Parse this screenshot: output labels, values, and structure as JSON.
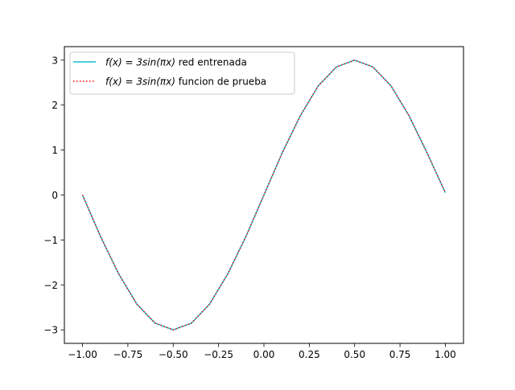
{
  "chart_data": {
    "type": "line",
    "title": "",
    "xlabel": "",
    "ylabel": "",
    "xlim": [
      -1.1,
      1.1
    ],
    "ylim": [
      -3.3,
      3.3
    ],
    "x_ticks": [
      -1.0,
      -0.75,
      -0.5,
      -0.25,
      0.0,
      0.25,
      0.5,
      0.75,
      1.0
    ],
    "x_tick_labels": [
      "−1.00",
      "−0.75",
      "−0.50",
      "−0.25",
      "0.00",
      "0.25",
      "0.50",
      "0.75",
      "1.00"
    ],
    "y_ticks": [
      -3,
      -2,
      -1,
      0,
      1,
      2,
      3
    ],
    "y_tick_labels": [
      "−3",
      "−2",
      "−1",
      "0",
      "1",
      "2",
      "3"
    ],
    "grid": false,
    "legend_position": "top-left",
    "series": [
      {
        "name": "f(x) = 3sin(πx) red entrenada",
        "name_math": "f(x) = 3sin(πx)",
        "name_suffix": " red entrenada",
        "color": "#17becf",
        "style": "solid",
        "x": [
          -1.0,
          -0.9,
          -0.8,
          -0.7,
          -0.6,
          -0.5,
          -0.4,
          -0.3,
          -0.2,
          -0.1,
          0.0,
          0.1,
          0.2,
          0.3,
          0.4,
          0.5,
          0.6,
          0.7,
          0.8,
          0.9,
          1.0
        ],
        "y": [
          0.0,
          -0.93,
          -1.76,
          -2.43,
          -2.85,
          -3.0,
          -2.85,
          -2.43,
          -1.76,
          -0.93,
          0.0,
          0.93,
          1.76,
          2.43,
          2.85,
          3.0,
          2.85,
          2.43,
          1.76,
          0.93,
          0.05
        ]
      },
      {
        "name": "f(x) = 3sin(πx) funcion de prueba",
        "name_math": "f(x) = 3sin(πx)",
        "name_suffix": " funcion de prueba",
        "color": "#ff0000",
        "style": "dotted",
        "x": [
          -1.0,
          -0.9,
          -0.8,
          -0.7,
          -0.6,
          -0.5,
          -0.4,
          -0.3,
          -0.2,
          -0.1,
          0.0,
          0.1,
          0.2,
          0.3,
          0.4,
          0.5,
          0.6,
          0.7,
          0.8,
          0.9,
          1.0
        ],
        "y": [
          0.0,
          -0.93,
          -1.76,
          -2.43,
          -2.85,
          -3.0,
          -2.85,
          -2.43,
          -1.76,
          -0.93,
          0.0,
          0.93,
          1.76,
          2.43,
          2.85,
          3.0,
          2.85,
          2.43,
          1.76,
          0.93,
          0.05
        ]
      }
    ]
  }
}
